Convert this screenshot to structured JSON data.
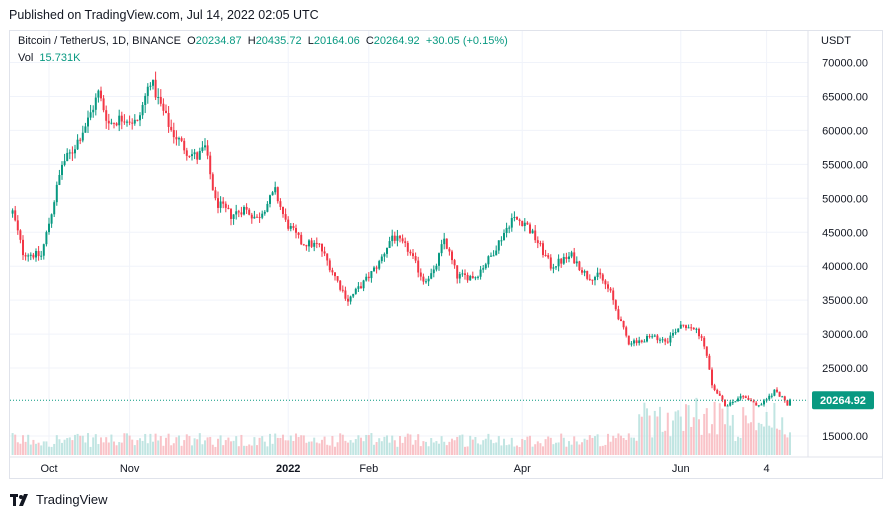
{
  "header": {
    "published": "Published on TradingView.com, Jul 14, 2022 02:05 UTC"
  },
  "legend": {
    "symbol": "Bitcoin / TetherUS, 1D, BINANCE",
    "open_label": "O",
    "open": "20234.87",
    "high_label": "H",
    "high": "20435.72",
    "low_label": "L",
    "low": "20164.06",
    "close_label": "C",
    "close": "20264.92",
    "change": "+30.05 (+0.15%)",
    "vol_label": "Vol",
    "vol": "15.731K"
  },
  "currency": "USDT",
  "footer": {
    "brand": "TradingView"
  },
  "colors": {
    "up": "#089981",
    "down": "#f23645",
    "price_tag": "#089981",
    "grid": "#f0f3fa"
  },
  "chart_data": {
    "type": "candlestick",
    "y_axis_labels": [
      "70000.00",
      "65000.00",
      "60000.00",
      "55000.00",
      "50000.00",
      "45000.00",
      "40000.00",
      "35000.00",
      "30000.00",
      "25000.00",
      "15000.00"
    ],
    "x_axis_labels": [
      "Oct",
      "Nov",
      "2022",
      "Feb",
      "Apr",
      "Jun",
      "4"
    ],
    "ylim": [
      11000,
      72000
    ],
    "current_price": 20264.92,
    "current_price_label": "20264.92",
    "close_path": [
      [
        "2021-09-17",
        48000
      ],
      [
        "2021-09-21",
        42000
      ],
      [
        "2021-09-28",
        41500
      ],
      [
        "2021-10-02",
        48000
      ],
      [
        "2021-10-06",
        55000
      ],
      [
        "2021-10-10",
        57000
      ],
      [
        "2021-10-16",
        61500
      ],
      [
        "2021-10-20",
        65500
      ],
      [
        "2021-10-24",
        61000
      ],
      [
        "2021-10-30",
        62000
      ],
      [
        "2021-11-04",
        61000
      ],
      [
        "2021-11-09",
        67500
      ],
      [
        "2021-11-12",
        64500
      ],
      [
        "2021-11-17",
        60000
      ],
      [
        "2021-11-23",
        57000
      ],
      [
        "2021-11-27",
        56000
      ],
      [
        "2021-11-30",
        57500
      ],
      [
        "2021-12-04",
        49500
      ],
      [
        "2021-12-10",
        47500
      ],
      [
        "2021-12-15",
        48500
      ],
      [
        "2021-12-20",
        47000
      ],
      [
        "2021-12-27",
        51000
      ],
      [
        "2021-12-31",
        46500
      ],
      [
        "2022-01-06",
        43500
      ],
      [
        "2022-01-13",
        43000
      ],
      [
        "2022-01-21",
        37000
      ],
      [
        "2022-01-24",
        35000
      ],
      [
        "2022-01-31",
        38000
      ],
      [
        "2022-02-05",
        40500
      ],
      [
        "2022-02-10",
        44500
      ],
      [
        "2022-02-16",
        42500
      ],
      [
        "2022-02-22",
        38000
      ],
      [
        "2022-02-26",
        39000
      ],
      [
        "2022-03-02",
        44000
      ],
      [
        "2022-03-07",
        38500
      ],
      [
        "2022-03-14",
        38500
      ],
      [
        "2022-03-20",
        41500
      ],
      [
        "2022-03-28",
        47000
      ],
      [
        "2022-04-02",
        46500
      ],
      [
        "2022-04-07",
        43500
      ],
      [
        "2022-04-12",
        40000
      ],
      [
        "2022-04-20",
        41500
      ],
      [
        "2022-04-26",
        38500
      ],
      [
        "2022-05-01",
        38500
      ],
      [
        "2022-05-05",
        36000
      ],
      [
        "2022-05-09",
        31500
      ],
      [
        "2022-05-12",
        28800
      ],
      [
        "2022-05-20",
        29500
      ],
      [
        "2022-05-27",
        29200
      ],
      [
        "2022-06-01",
        31500
      ],
      [
        "2022-06-06",
        31000
      ],
      [
        "2022-06-10",
        28500
      ],
      [
        "2022-06-13",
        22500
      ],
      [
        "2022-06-18",
        19500
      ],
      [
        "2022-06-25",
        21000
      ],
      [
        "2022-07-01",
        19300
      ],
      [
        "2022-07-07",
        21600
      ],
      [
        "2022-07-10",
        20800
      ],
      [
        "2022-07-12",
        19300
      ],
      [
        "2022-07-13",
        20265
      ]
    ]
  }
}
